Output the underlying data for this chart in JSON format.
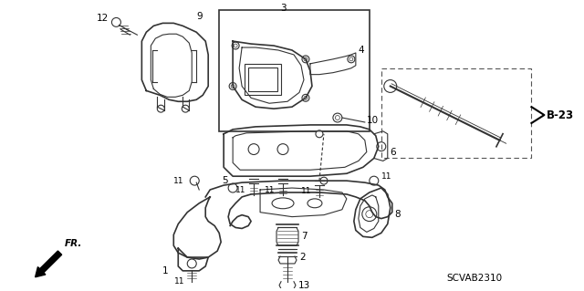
{
  "bg_color": "#ffffff",
  "diagram_color": "#333333",
  "fig_width": 6.4,
  "fig_height": 3.19,
  "dpi": 100,
  "catalog_code": "SCVAB2310"
}
